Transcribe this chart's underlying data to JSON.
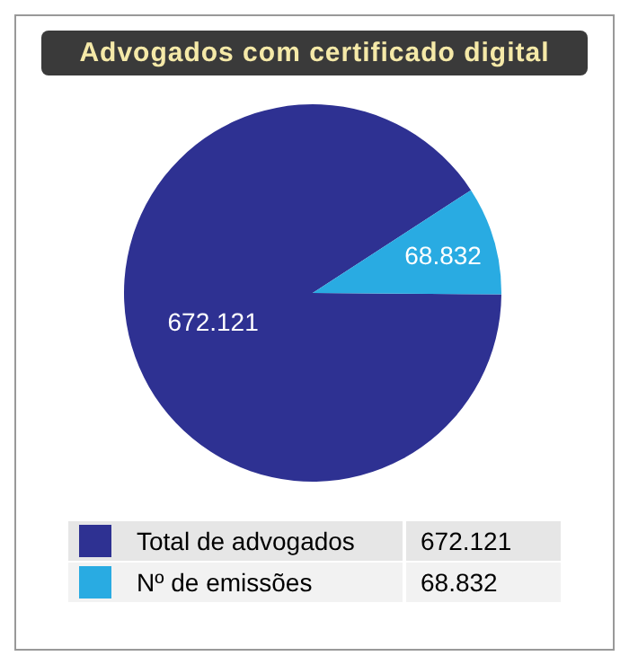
{
  "chart_data": {
    "type": "pie",
    "title": "Advogados com certificado digital",
    "categories": [
      "Total de advogados",
      "Nº de emissões"
    ],
    "values": [
      672121,
      68832
    ],
    "value_labels": [
      "672.121",
      "68.832"
    ],
    "colors": [
      "#2e3192",
      "#29abe2"
    ],
    "legend": "bottom"
  }
}
